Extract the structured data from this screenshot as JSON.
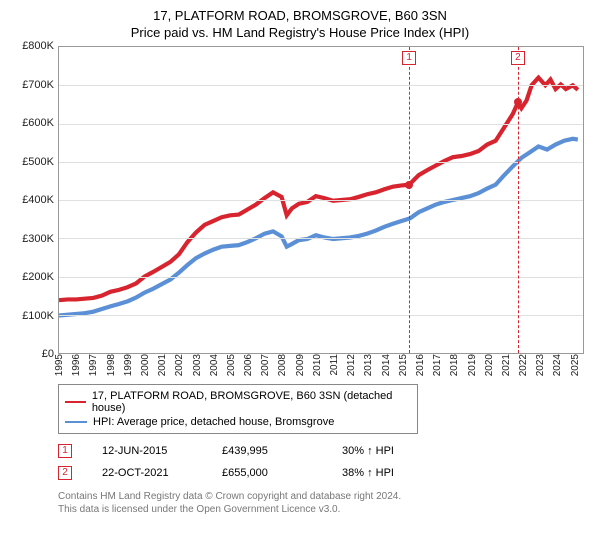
{
  "title": "17, PLATFORM ROAD, BROMSGROVE, B60 3SN",
  "subtitle": "Price paid vs. HM Land Registry's House Price Index (HPI)",
  "chart": {
    "type": "line",
    "background_color": "#ffffff",
    "border_color": "#999999",
    "grid_color": "#e0e0e0",
    "xlim": [
      1995,
      2025.6
    ],
    "ylim": [
      0,
      800000
    ],
    "ytick_step": 100000,
    "yticks": [
      {
        "v": 0,
        "label": "£0"
      },
      {
        "v": 100000,
        "label": "£100K"
      },
      {
        "v": 200000,
        "label": "£200K"
      },
      {
        "v": 300000,
        "label": "£300K"
      },
      {
        "v": 400000,
        "label": "£400K"
      },
      {
        "v": 500000,
        "label": "£500K"
      },
      {
        "v": 600000,
        "label": "£600K"
      },
      {
        "v": 700000,
        "label": "£700K"
      },
      {
        "v": 800000,
        "label": "£800K"
      }
    ],
    "xticks": [
      1995,
      1996,
      1997,
      1998,
      1999,
      2000,
      2001,
      2002,
      2003,
      2004,
      2005,
      2006,
      2007,
      2008,
      2009,
      2010,
      2011,
      2012,
      2013,
      2014,
      2015,
      2016,
      2017,
      2018,
      2019,
      2020,
      2021,
      2022,
      2023,
      2024,
      2025
    ],
    "label_fontsize": 11,
    "line_width": 1.4,
    "series": [
      {
        "id": "property",
        "label": "17, PLATFORM ROAD, BROMSGROVE, B60 3SN (detached house)",
        "color": "#d8242f",
        "points": [
          [
            1995,
            138000
          ],
          [
            1995.5,
            140000
          ],
          [
            1996,
            140000
          ],
          [
            1996.5,
            142000
          ],
          [
            1997,
            144000
          ],
          [
            1997.5,
            150000
          ],
          [
            1998,
            160000
          ],
          [
            1998.5,
            165000
          ],
          [
            1999,
            172000
          ],
          [
            1999.5,
            182000
          ],
          [
            2000,
            200000
          ],
          [
            2000.5,
            212000
          ],
          [
            2001,
            225000
          ],
          [
            2001.5,
            238000
          ],
          [
            2002,
            258000
          ],
          [
            2002.5,
            290000
          ],
          [
            2003,
            315000
          ],
          [
            2003.5,
            335000
          ],
          [
            2004,
            345000
          ],
          [
            2004.5,
            355000
          ],
          [
            2005,
            360000
          ],
          [
            2005.5,
            362000
          ],
          [
            2006,
            375000
          ],
          [
            2006.5,
            388000
          ],
          [
            2007,
            405000
          ],
          [
            2007.5,
            420000
          ],
          [
            2008,
            408000
          ],
          [
            2008.3,
            360000
          ],
          [
            2008.6,
            378000
          ],
          [
            2009,
            390000
          ],
          [
            2009.5,
            395000
          ],
          [
            2010,
            410000
          ],
          [
            2010.5,
            405000
          ],
          [
            2011,
            398000
          ],
          [
            2011.5,
            400000
          ],
          [
            2012,
            402000
          ],
          [
            2012.5,
            408000
          ],
          [
            2013,
            415000
          ],
          [
            2013.5,
            420000
          ],
          [
            2014,
            428000
          ],
          [
            2014.5,
            435000
          ],
          [
            2015,
            438000
          ],
          [
            2015.45,
            439995
          ],
          [
            2016,
            465000
          ],
          [
            2016.5,
            478000
          ],
          [
            2017,
            490000
          ],
          [
            2017.5,
            502000
          ],
          [
            2018,
            512000
          ],
          [
            2018.5,
            515000
          ],
          [
            2019,
            520000
          ],
          [
            2019.5,
            528000
          ],
          [
            2020,
            545000
          ],
          [
            2020.5,
            555000
          ],
          [
            2021,
            590000
          ],
          [
            2021.5,
            625000
          ],
          [
            2021.8,
            655000
          ],
          [
            2022,
            640000
          ],
          [
            2022.3,
            660000
          ],
          [
            2022.6,
            700000
          ],
          [
            2023,
            720000
          ],
          [
            2023.4,
            700000
          ],
          [
            2023.7,
            715000
          ],
          [
            2024,
            690000
          ],
          [
            2024.3,
            702000
          ],
          [
            2024.6,
            690000
          ],
          [
            2025,
            700000
          ],
          [
            2025.3,
            688000
          ]
        ]
      },
      {
        "id": "hpi",
        "label": "HPI: Average price, detached house, Bromsgrove",
        "color": "#5b8fd6",
        "points": [
          [
            1995,
            98000
          ],
          [
            1995.5,
            100000
          ],
          [
            1996,
            102000
          ],
          [
            1996.5,
            104000
          ],
          [
            1997,
            108000
          ],
          [
            1997.5,
            115000
          ],
          [
            1998,
            122000
          ],
          [
            1998.5,
            128000
          ],
          [
            1999,
            135000
          ],
          [
            1999.5,
            145000
          ],
          [
            2000,
            158000
          ],
          [
            2000.5,
            168000
          ],
          [
            2001,
            180000
          ],
          [
            2001.5,
            192000
          ],
          [
            2002,
            210000
          ],
          [
            2002.5,
            230000
          ],
          [
            2003,
            248000
          ],
          [
            2003.5,
            260000
          ],
          [
            2004,
            270000
          ],
          [
            2004.5,
            278000
          ],
          [
            2005,
            280000
          ],
          [
            2005.5,
            282000
          ],
          [
            2006,
            290000
          ],
          [
            2006.5,
            300000
          ],
          [
            2007,
            312000
          ],
          [
            2007.5,
            318000
          ],
          [
            2008,
            305000
          ],
          [
            2008.3,
            278000
          ],
          [
            2008.6,
            285000
          ],
          [
            2009,
            295000
          ],
          [
            2009.5,
            298000
          ],
          [
            2010,
            308000
          ],
          [
            2010.5,
            302000
          ],
          [
            2011,
            298000
          ],
          [
            2011.5,
            300000
          ],
          [
            2012,
            302000
          ],
          [
            2012.5,
            306000
          ],
          [
            2013,
            312000
          ],
          [
            2013.5,
            320000
          ],
          [
            2014,
            330000
          ],
          [
            2014.5,
            338000
          ],
          [
            2015,
            345000
          ],
          [
            2015.5,
            352000
          ],
          [
            2016,
            368000
          ],
          [
            2016.5,
            378000
          ],
          [
            2017,
            388000
          ],
          [
            2017.5,
            395000
          ],
          [
            2018,
            400000
          ],
          [
            2018.5,
            405000
          ],
          [
            2019,
            410000
          ],
          [
            2019.5,
            418000
          ],
          [
            2020,
            430000
          ],
          [
            2020.5,
            440000
          ],
          [
            2021,
            465000
          ],
          [
            2021.5,
            488000
          ],
          [
            2022,
            510000
          ],
          [
            2022.5,
            525000
          ],
          [
            2023,
            540000
          ],
          [
            2023.5,
            532000
          ],
          [
            2024,
            545000
          ],
          [
            2024.5,
            555000
          ],
          [
            2025,
            560000
          ],
          [
            2025.3,
            558000
          ]
        ]
      }
    ],
    "vlines": [
      {
        "x": 2015.45,
        "color": "#d8242f",
        "dash": "4,3",
        "badge": "1"
      },
      {
        "x": 2021.8,
        "color": "#d8242f",
        "dash": "4,3",
        "badge": "2"
      }
    ],
    "markers": [
      {
        "x": 2015.45,
        "y": 439995,
        "color": "#d8242f"
      },
      {
        "x": 2021.8,
        "y": 655000,
        "color": "#d8242f"
      }
    ]
  },
  "legend": {
    "items": [
      {
        "color": "#d8242f",
        "label": "17, PLATFORM ROAD, BROMSGROVE, B60 3SN (detached house)"
      },
      {
        "color": "#5b8fd6",
        "label": "HPI: Average price, detached house, Bromsgrove"
      }
    ]
  },
  "sales": [
    {
      "badge": "1",
      "badge_color": "#d8242f",
      "date": "12-JUN-2015",
      "price": "£439,995",
      "delta": "30% ↑ HPI"
    },
    {
      "badge": "2",
      "badge_color": "#d8242f",
      "date": "22-OCT-2021",
      "price": "£655,000",
      "delta": "38% ↑ HPI"
    }
  ],
  "footer": {
    "l1": "Contains HM Land Registry data © Crown copyright and database right 2024.",
    "l2": "This data is licensed under the Open Government Licence v3.0."
  }
}
